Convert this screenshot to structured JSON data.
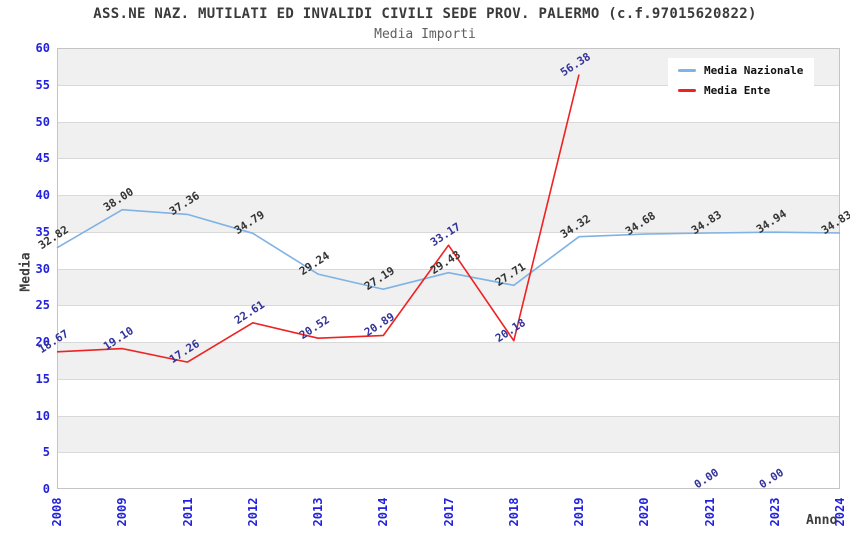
{
  "header": {
    "title": "ASS.NE NAZ. MUTILATI ED INVALIDI CIVILI SEDE PROV. PALERMO (c.f.97015620822)",
    "subtitle": "Media Importi"
  },
  "legend": {
    "items": [
      {
        "label": "Media Nazionale",
        "color": "#7fb2e5"
      },
      {
        "label": "Media Ente",
        "color": "#ee2222"
      }
    ]
  },
  "chart_data": {
    "type": "line",
    "title": "ASS.NE NAZ. MUTILATI ED INVALIDI CIVILI SEDE PROV. PALERMO (c.f.97015620822)",
    "subtitle": "Media Importi",
    "xlabel": "Anno",
    "ylabel": "Media",
    "categories": [
      "2008",
      "2009",
      "2011",
      "2012",
      "2013",
      "2014",
      "2017",
      "2018",
      "2019",
      "2020",
      "2021",
      "2023",
      "2024"
    ],
    "series": [
      {
        "name": "Media Nazionale",
        "color": "#7fb2e5",
        "label_color": "#333333",
        "values": [
          32.82,
          38.0,
          37.36,
          34.79,
          29.24,
          27.19,
          29.43,
          27.71,
          34.32,
          34.68,
          34.83,
          34.94,
          34.83
        ],
        "line_segments": [
          [
            0,
            12
          ]
        ]
      },
      {
        "name": "Media Ente",
        "color": "#ee2222",
        "label_color": "#333399",
        "values": [
          18.67,
          19.1,
          17.26,
          22.61,
          20.52,
          20.89,
          33.17,
          20.18,
          56.38,
          null,
          0.0,
          0.0,
          null
        ],
        "line_segments": [
          [
            0,
            8
          ]
        ]
      }
    ],
    "ylim": [
      0,
      60
    ],
    "ytick_step": 5,
    "grid": true,
    "legend_position": "top-right",
    "band_colors": [
      "#ffffff",
      "#f0f0f0"
    ],
    "gridline_color": "#d9d9d9",
    "axis_line_color": "#c4c4c4",
    "tick_label_color": "#2222dd",
    "value_label_decimals": 2
  },
  "colors": {
    "title": "#3a3a3a",
    "subtitle": "#5f5f5f",
    "axis_title": "#3d3d3d"
  }
}
